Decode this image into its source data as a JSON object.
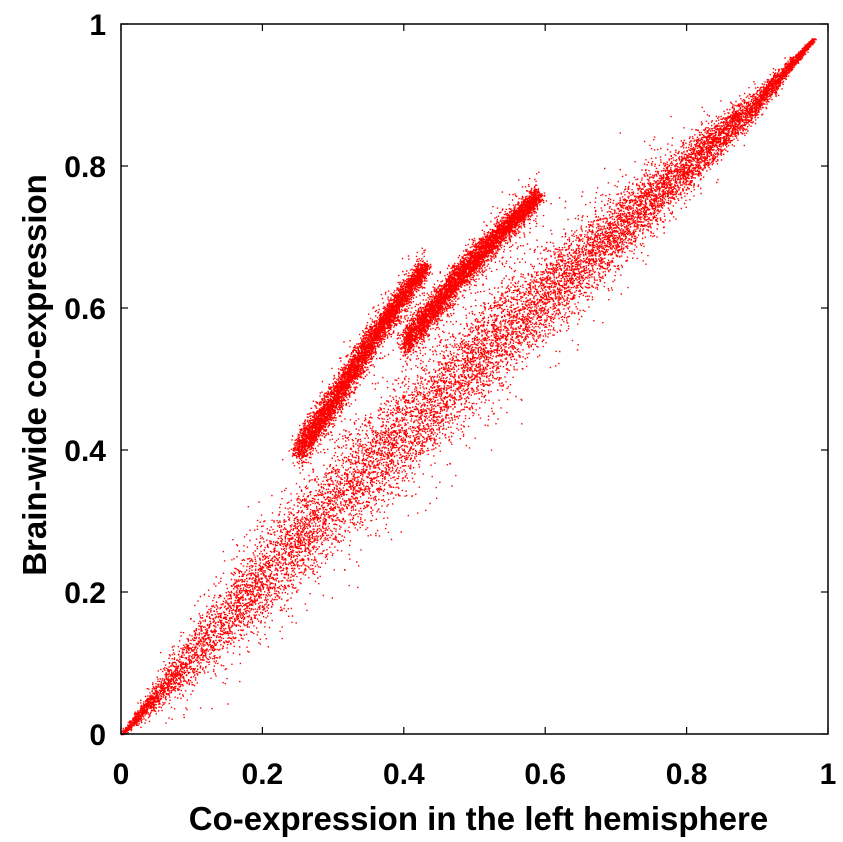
{
  "chart_data": {
    "type": "scatter",
    "title": "",
    "xlabel": "Co-expression in the left hemisphere",
    "ylabel": "Brain-wide co-expression",
    "xlim": [
      0,
      1
    ],
    "ylim": [
      0,
      1
    ],
    "xticks": [
      "0",
      "0.2",
      "0.4",
      "0.6",
      "0.8",
      "1"
    ],
    "yticks": [
      "0",
      "0.2",
      "0.4",
      "0.6",
      "0.8",
      "1"
    ],
    "grid": false,
    "legend": "none",
    "point_color": "#ff0000",
    "series": [
      {
        "description_points_x": [
          0.0,
          0.1,
          0.2,
          0.3,
          0.4,
          0.5,
          0.6,
          0.7,
          0.8,
          0.9,
          0.98
        ],
        "main_band_center_y": [
          0.0,
          0.11,
          0.22,
          0.33,
          0.43,
          0.53,
          0.62,
          0.71,
          0.8,
          0.89,
          0.98
        ],
        "main_band_halfwidth": [
          0.0,
          0.05,
          0.08,
          0.09,
          0.095,
          0.09,
          0.08,
          0.065,
          0.045,
          0.025,
          0.0
        ]
      },
      {
        "description_points_x": [
          0.25,
          0.3,
          0.35,
          0.4,
          0.43
        ],
        "streak_center_y": [
          0.4,
          0.47,
          0.55,
          0.62,
          0.66
        ],
        "streak_halfwidth": [
          0.02,
          0.02,
          0.018,
          0.015,
          0.01
        ]
      },
      {
        "description_points_x": [
          0.4,
          0.45,
          0.5,
          0.55,
          0.59
        ],
        "streak_center_y": [
          0.55,
          0.61,
          0.67,
          0.72,
          0.76
        ],
        "streak_halfwidth": [
          0.02,
          0.02,
          0.018,
          0.015,
          0.01
        ]
      }
    ]
  }
}
